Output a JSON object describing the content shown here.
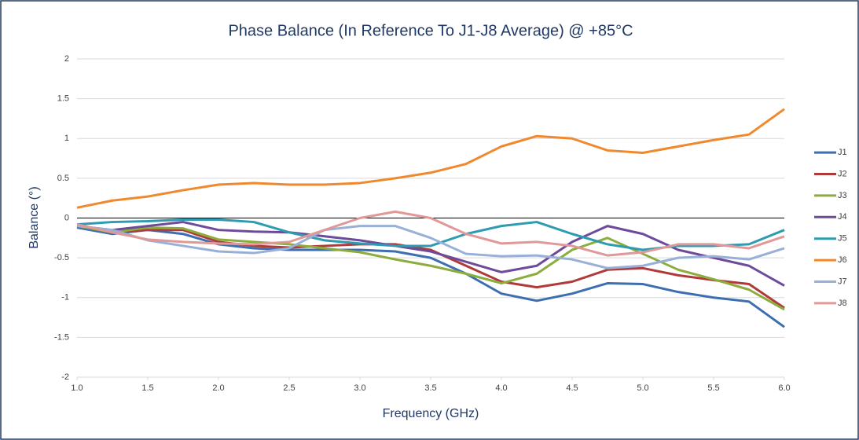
{
  "chart_data": {
    "type": "line",
    "title": "Phase Balance (In Reference To J1-J8 Average) @ +85°C",
    "xlabel": "Frequency (GHz)",
    "ylabel": "Balance (°)",
    "x": [
      1,
      1.25,
      1.5,
      1.75,
      2,
      2.25,
      2.5,
      2.75,
      3,
      3.25,
      3.5,
      3.75,
      4,
      4.25,
      4.5,
      4.75,
      5,
      5.25,
      5.5,
      5.75,
      6
    ],
    "xlim": [
      1,
      6
    ],
    "xticks": [
      {
        "value": 1,
        "label": "1.0"
      },
      1.5,
      {
        "value": 2,
        "label": "2.0"
      },
      2.5,
      {
        "value": 3,
        "label": "3.0"
      },
      3.5,
      {
        "value": 4,
        "label": "4.0"
      },
      4.5,
      {
        "value": 5,
        "label": "5.0"
      },
      5.5,
      {
        "value": 6,
        "label": "6.0"
      }
    ],
    "ylim": [
      -2,
      2
    ],
    "yticks": [
      -2,
      -1.5,
      -1,
      -0.5,
      0,
      0.5,
      1,
      1.5,
      2
    ],
    "grid": true,
    "legend": "right",
    "series": [
      {
        "name": "J1",
        "color": "#3c6eb0",
        "values": [
          -0.12,
          -0.2,
          -0.15,
          -0.2,
          -0.33,
          -0.38,
          -0.4,
          -0.4,
          -0.4,
          -0.42,
          -0.5,
          -0.7,
          -0.95,
          -1.04,
          -0.95,
          -0.82,
          -0.83,
          -0.93,
          -1.0,
          -1.05,
          -1.37
        ]
      },
      {
        "name": "J2",
        "color": "#b03a3a",
        "values": [
          -0.1,
          -0.18,
          -0.15,
          -0.15,
          -0.3,
          -0.35,
          -0.37,
          -0.35,
          -0.33,
          -0.33,
          -0.4,
          -0.6,
          -0.8,
          -0.87,
          -0.8,
          -0.65,
          -0.63,
          -0.72,
          -0.78,
          -0.83,
          -1.13
        ]
      },
      {
        "name": "J3",
        "color": "#8cad3e",
        "values": [
          -0.1,
          -0.18,
          -0.12,
          -0.13,
          -0.27,
          -0.3,
          -0.33,
          -0.38,
          -0.43,
          -0.52,
          -0.6,
          -0.7,
          -0.82,
          -0.7,
          -0.4,
          -0.25,
          -0.45,
          -0.65,
          -0.77,
          -0.9,
          -1.15
        ]
      },
      {
        "name": "J4",
        "color": "#6e4a9b",
        "values": [
          -0.1,
          -0.15,
          -0.1,
          -0.05,
          -0.15,
          -0.17,
          -0.18,
          -0.23,
          -0.28,
          -0.35,
          -0.42,
          -0.55,
          -0.68,
          -0.6,
          -0.3,
          -0.1,
          -0.2,
          -0.4,
          -0.5,
          -0.6,
          -0.85
        ]
      },
      {
        "name": "J5",
        "color": "#2e9bb0",
        "values": [
          -0.08,
          -0.05,
          -0.04,
          -0.02,
          -0.02,
          -0.05,
          -0.18,
          -0.28,
          -0.32,
          -0.35,
          -0.35,
          -0.2,
          -0.1,
          -0.05,
          -0.2,
          -0.33,
          -0.4,
          -0.35,
          -0.35,
          -0.33,
          -0.15
        ]
      },
      {
        "name": "J6",
        "color": "#f0892e",
        "values": [
          0.13,
          0.22,
          0.27,
          0.35,
          0.42,
          0.44,
          0.42,
          0.42,
          0.44,
          0.5,
          0.57,
          0.68,
          0.9,
          1.03,
          1.0,
          0.85,
          0.82,
          0.9,
          0.98,
          1.05,
          1.37
        ]
      },
      {
        "name": "J7",
        "color": "#98b0d8",
        "values": [
          -0.1,
          -0.15,
          -0.28,
          -0.35,
          -0.42,
          -0.44,
          -0.38,
          -0.15,
          -0.1,
          -0.1,
          -0.25,
          -0.45,
          -0.48,
          -0.47,
          -0.52,
          -0.63,
          -0.6,
          -0.5,
          -0.48,
          -0.52,
          -0.38
        ]
      },
      {
        "name": "J8",
        "color": "#e09898",
        "values": [
          -0.08,
          -0.18,
          -0.27,
          -0.3,
          -0.32,
          -0.33,
          -0.3,
          -0.15,
          0.0,
          0.08,
          0.0,
          -0.2,
          -0.32,
          -0.3,
          -0.35,
          -0.47,
          -0.43,
          -0.33,
          -0.33,
          -0.38,
          -0.23
        ]
      }
    ]
  }
}
